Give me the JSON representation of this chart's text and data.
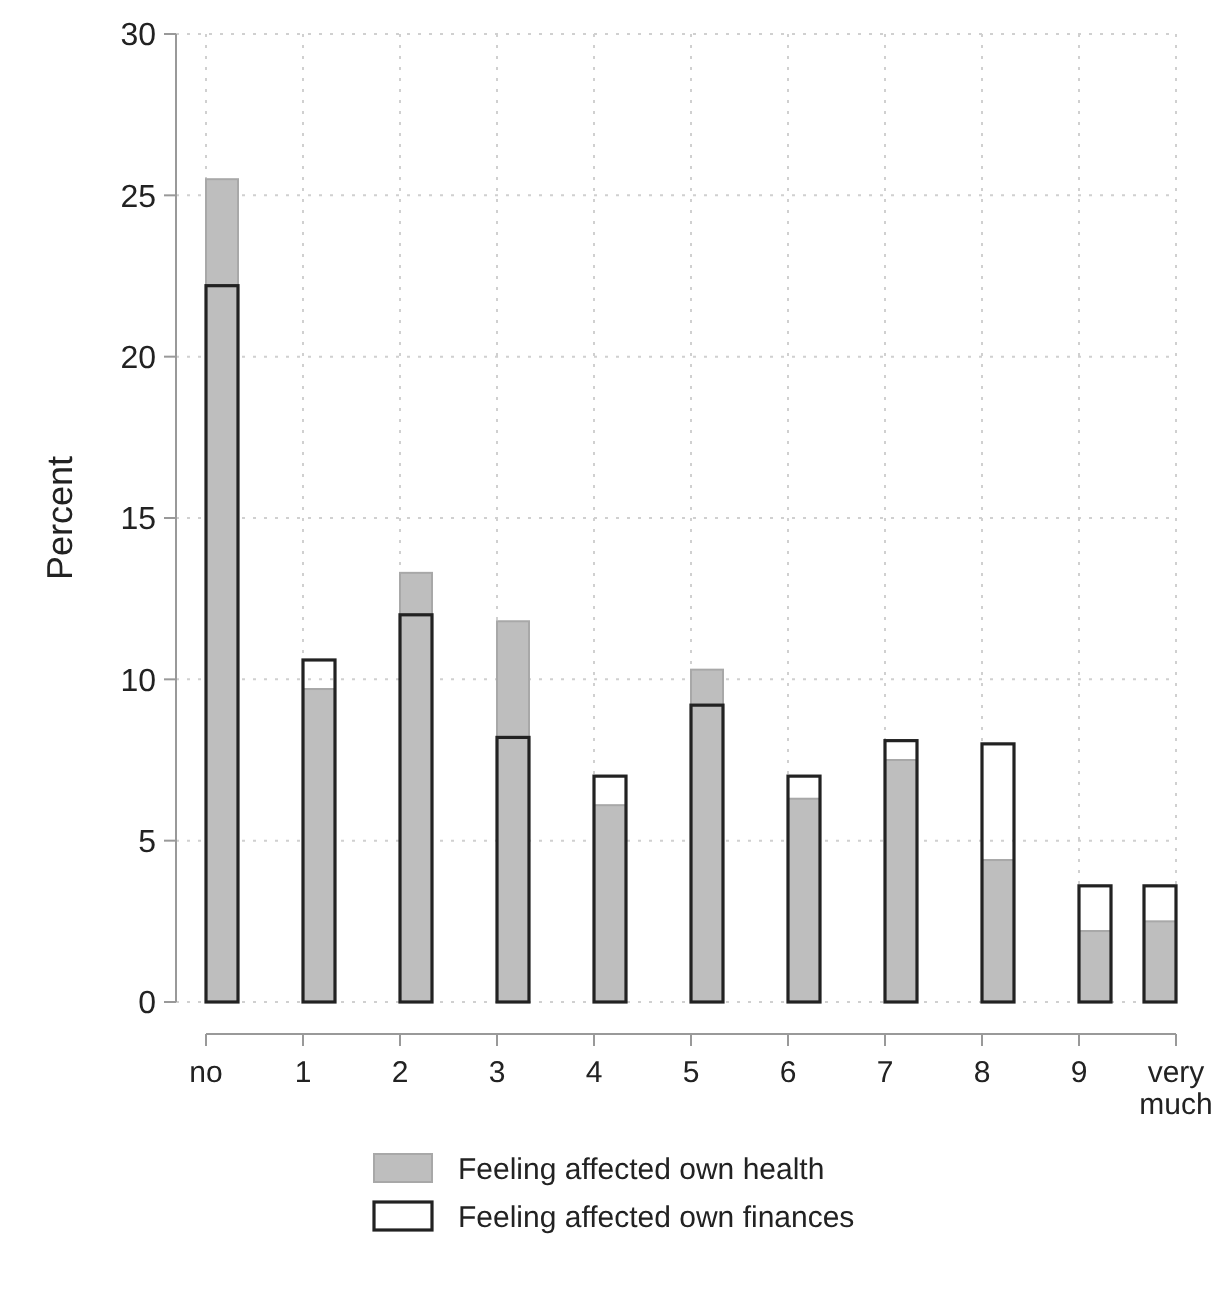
{
  "chart_data": {
    "type": "bar",
    "ylabel": "Percent",
    "categories": [
      "no",
      "1",
      "2",
      "3",
      "4",
      "5",
      "6",
      "7",
      "8",
      "9",
      "very much"
    ],
    "series": [
      {
        "name": "Feeling affected own health",
        "color": "#bebebe",
        "values": [
          25.5,
          9.7,
          13.3,
          11.8,
          6.1,
          10.3,
          6.3,
          7.5,
          4.4,
          2.2,
          2.5
        ]
      },
      {
        "name": "Feeling affected own finances",
        "color": "#222222",
        "values": [
          22.2,
          10.6,
          12.0,
          8.2,
          7.0,
          9.2,
          7.0,
          8.1,
          8.0,
          3.6,
          3.6
        ]
      }
    ],
    "ylim": [
      0,
      30
    ],
    "yticks": [
      0,
      5,
      10,
      15,
      20,
      25,
      30
    ],
    "grid": true,
    "legend": "bottom"
  }
}
